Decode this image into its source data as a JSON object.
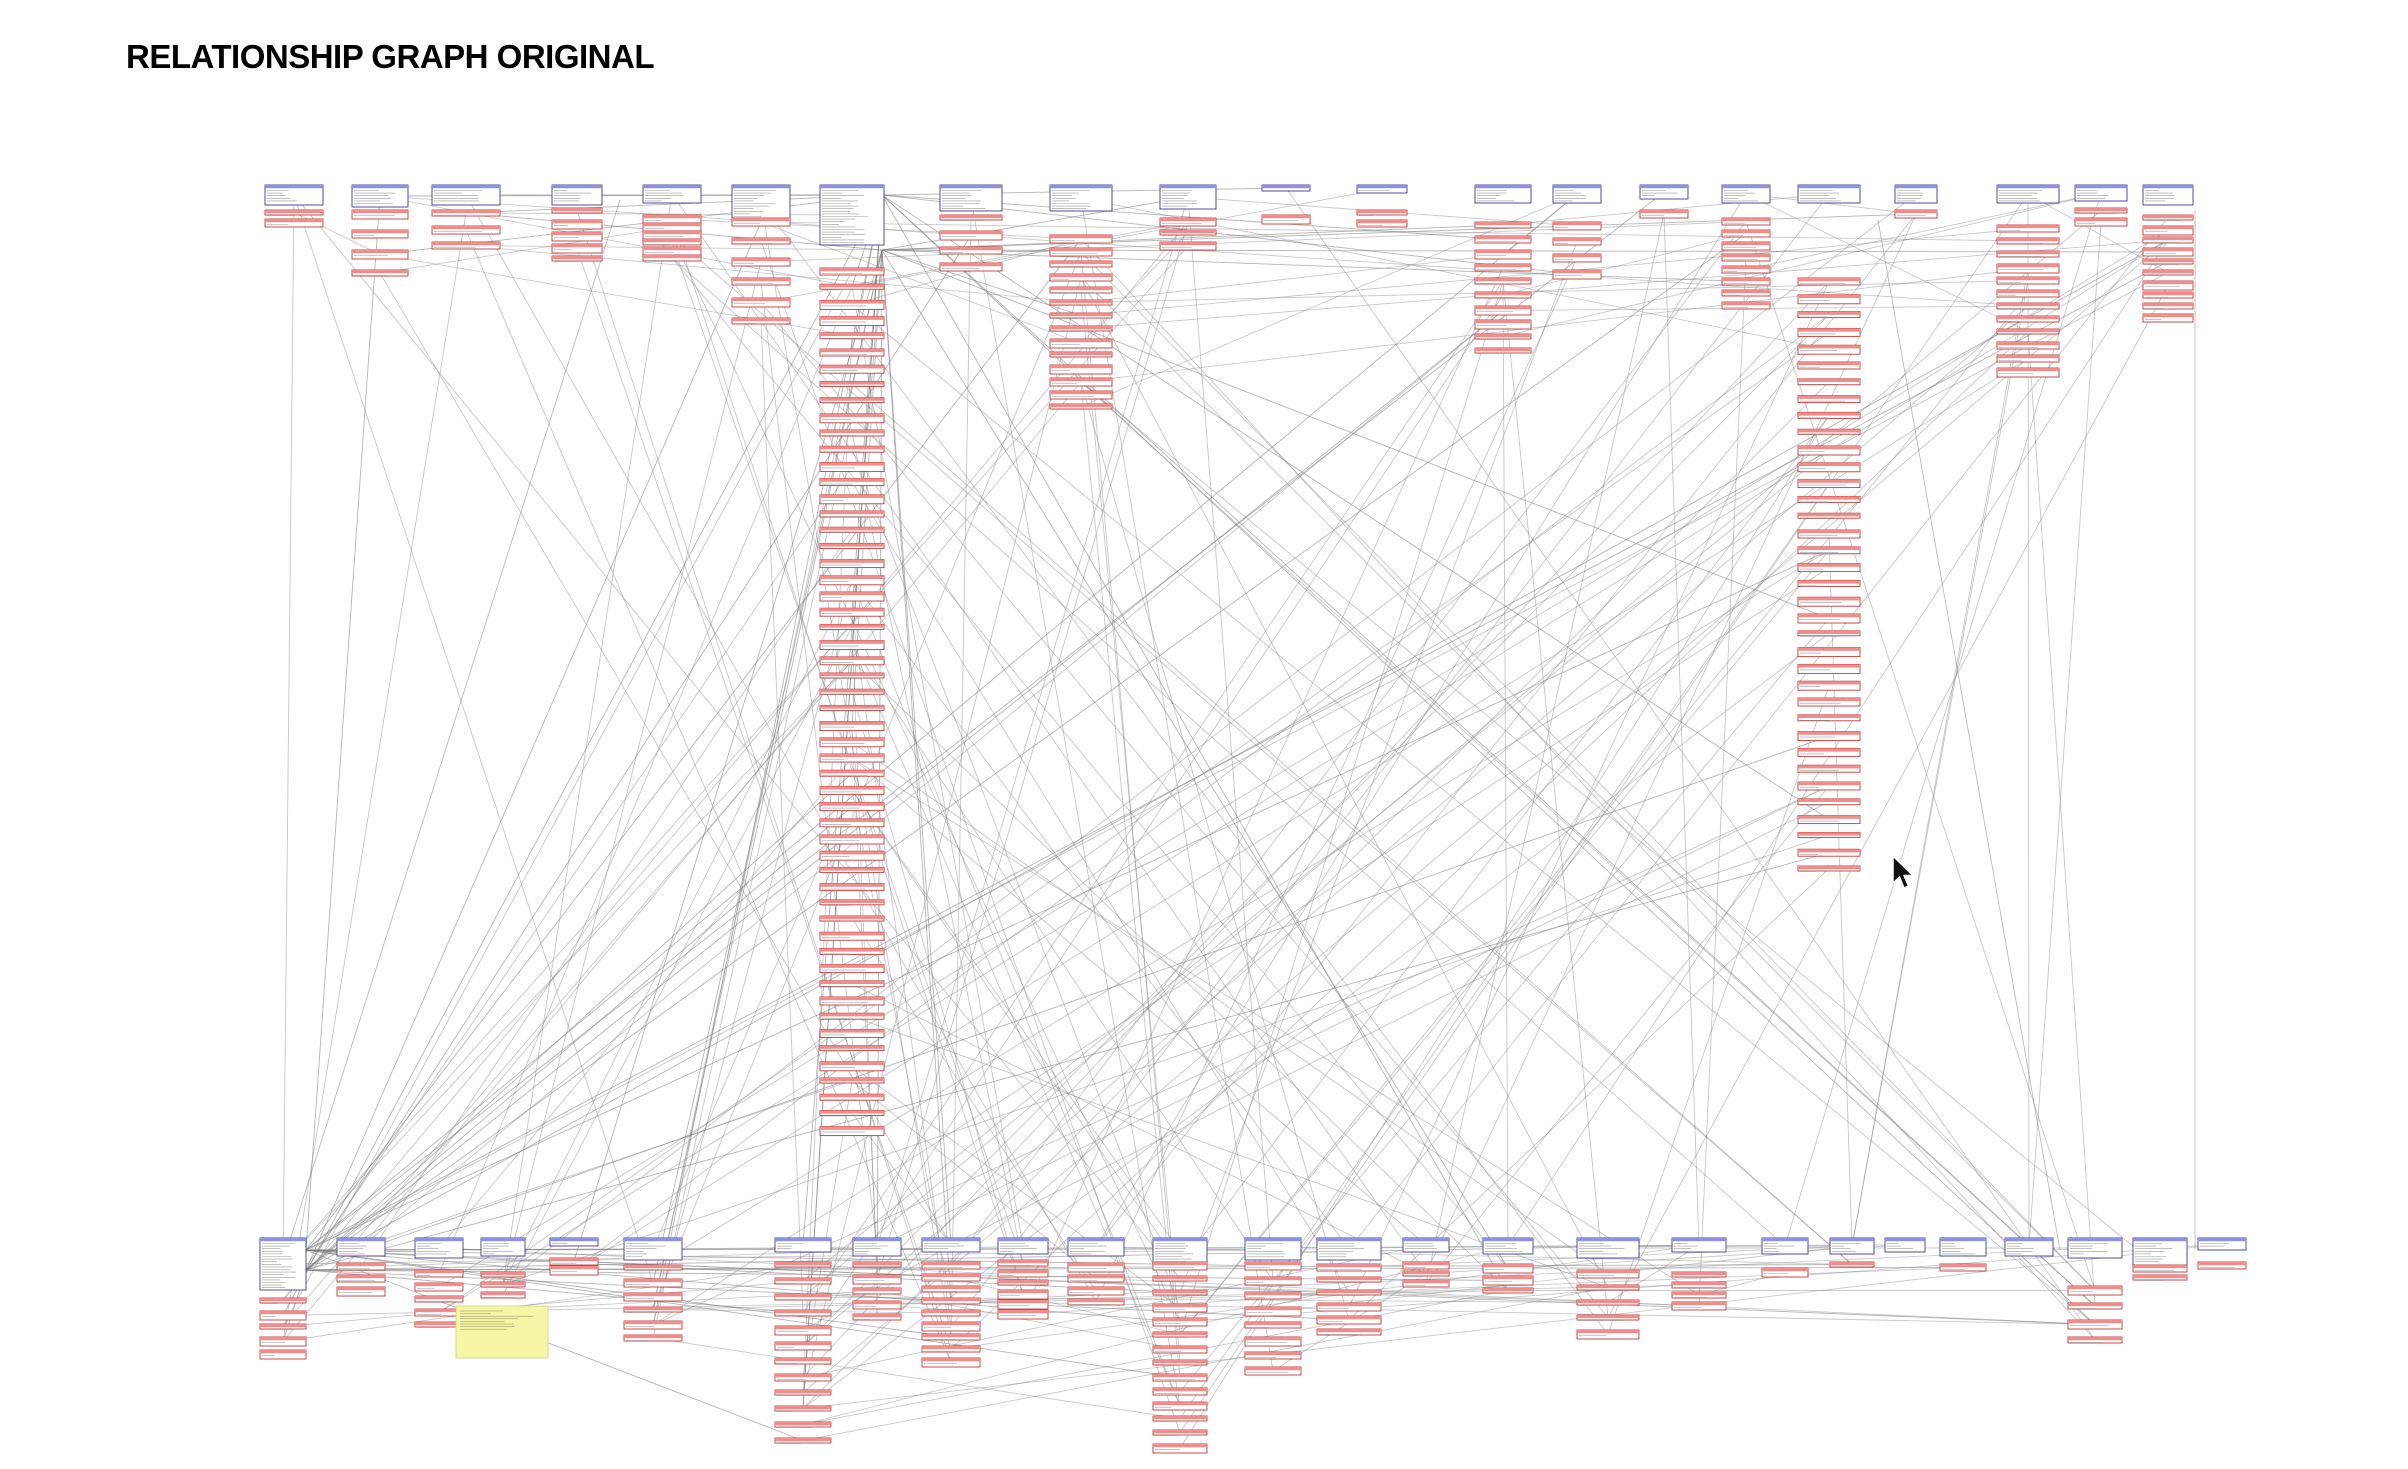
{
  "page": {
    "title": "RELATIONSHIP GRAPH ORIGINAL"
  },
  "colors": {
    "base_table_header": "#8f8fe6",
    "base_table_border": "#3a3a9a",
    "occurrence_header": "#f08c8c",
    "occurrence_border": "#c43838",
    "relationship_line": "#7a7a7a",
    "note_fill": "#f7f5a6",
    "note_border": "#d9d27a"
  },
  "icons": {
    "cursor": "mouse-pointer-icon"
  }
}
